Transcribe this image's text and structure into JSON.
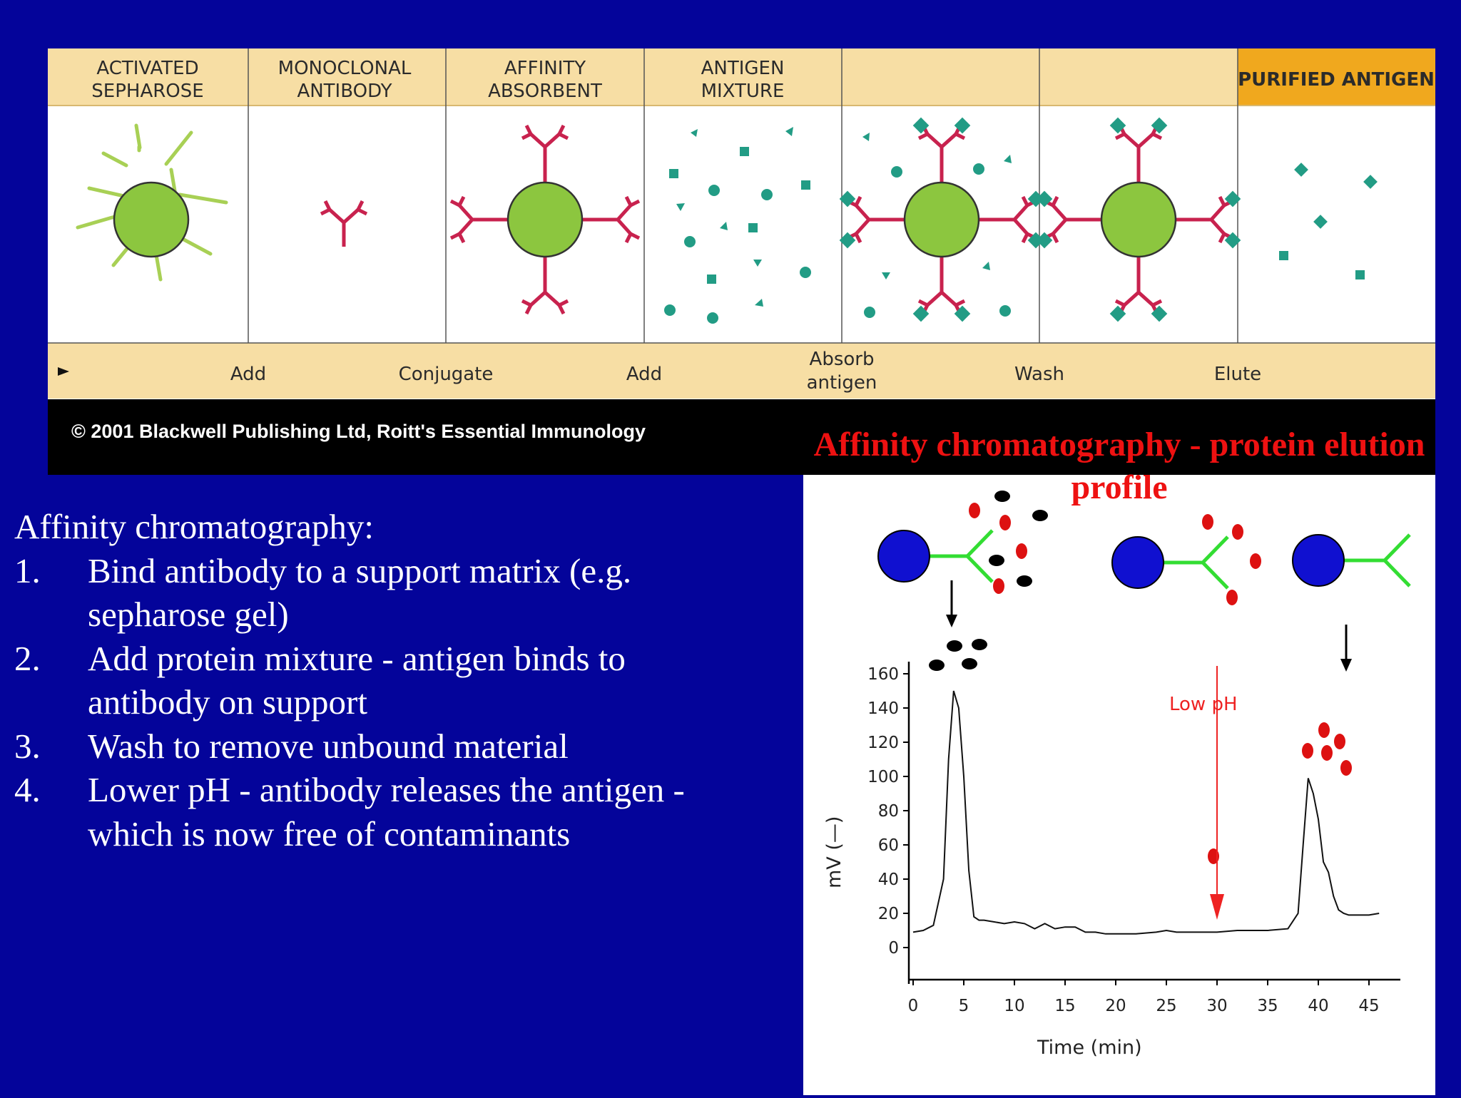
{
  "top_figure": {
    "headers": [
      "ACTIVATED\nSEPHAROSE",
      "MONOCLONAL\nANTIBODY",
      "AFFINITY\nABSORBENT",
      "ANTIGEN\nMIXTURE",
      "",
      "",
      "PURIFIED ANTIGEN"
    ],
    "header_0_line1": "ACTIVATED",
    "header_0_line2": "SEPHAROSE",
    "header_1_line1": "MONOCLONAL",
    "header_1_line2": "ANTIBODY",
    "header_2_line1": "AFFINITY",
    "header_2_line2": "ABSORBENT",
    "header_3_line1": "ANTIGEN",
    "header_3_line2": "MIXTURE",
    "header_6": "PURIFIED ANTIGEN",
    "steps": {
      "add1": "Add",
      "conjugate": "Conjugate",
      "add2": "Add",
      "absorb_line1": "Absorb",
      "absorb_line2": "antigen",
      "wash": "Wash",
      "elute": "Elute"
    },
    "copyright": "© 2001 Blackwell Publishing Ltd, Roitt's Essential Immunology",
    "colors": {
      "header_bg": "#f7dea4",
      "header_highlight": "#f0a81e",
      "bead": "#8cc63f",
      "antibody": "#c8224e",
      "antigen": "#229c85"
    }
  },
  "figure_title": "Affinity chromatography - protein elution profile",
  "text_block": {
    "heading": "Affinity chromatography:",
    "items": [
      {
        "num": "1.",
        "line1": "Bind antibody to a support matrix (e.g.",
        "line2": "sepharose gel)"
      },
      {
        "num": "2.",
        "line1": "Add protein mixture - antigen binds to",
        "line2": "antibody on support"
      },
      {
        "num": "3.",
        "line1": "Wash to remove unbound material",
        "line2": ""
      },
      {
        "num": "4.",
        "line1": "Lower pH - antibody releases the antigen -",
        "line2": "which is now free of contaminants"
      }
    ]
  },
  "chart_data": {
    "type": "line",
    "xlabel": "Time (min)",
    "ylabel": "mV (—)",
    "xlim": [
      0,
      47
    ],
    "ylim": [
      -10,
      170
    ],
    "x_ticks": [
      0,
      5,
      10,
      15,
      20,
      25,
      30,
      35,
      40,
      45
    ],
    "y_ticks": [
      0,
      20,
      40,
      60,
      80,
      100,
      120,
      140,
      160
    ],
    "annotation": "Low pH",
    "annotation_x": 30,
    "series": [
      {
        "x": [
          0,
          1,
          2,
          3,
          3.5,
          4,
          4.5,
          5,
          5.5,
          6,
          6.5,
          7,
          8,
          9,
          10,
          11,
          12,
          13,
          14,
          15,
          16,
          17,
          18,
          19,
          20,
          22,
          24,
          25,
          26,
          28,
          30,
          32,
          33,
          35,
          37,
          38,
          38.5,
          39,
          39.5,
          40,
          40.5,
          41,
          41.5,
          42,
          42.5,
          43,
          44,
          45,
          46
        ],
        "y": [
          9,
          10,
          13,
          40,
          110,
          150,
          140,
          100,
          45,
          18,
          16,
          16,
          15,
          14,
          15,
          14,
          11,
          14,
          11,
          12,
          12,
          9,
          9,
          8,
          8,
          8,
          9,
          10,
          9,
          9,
          9,
          10,
          10,
          10,
          11,
          20,
          60,
          99,
          90,
          75,
          50,
          44,
          30,
          22,
          20,
          19,
          19,
          19,
          20
        ]
      }
    ]
  }
}
